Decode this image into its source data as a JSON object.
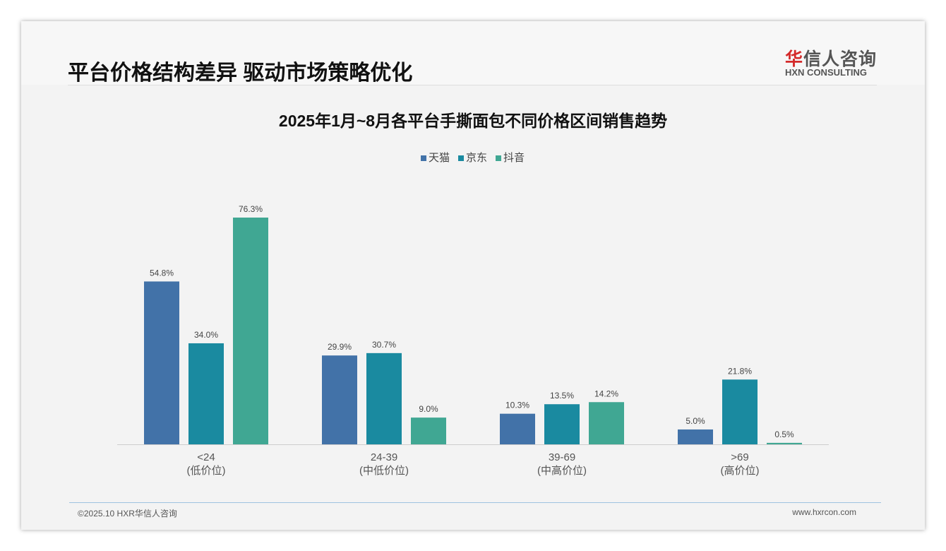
{
  "header": {
    "title": "平台价格结构差异 驱动市场策略优化",
    "logo_cn_red": "华",
    "logo_cn": "信人咨询",
    "logo_en": "HXN CONSULTING"
  },
  "footer": {
    "copyright": "©2025.10 HXR华信人咨询",
    "url": "www.hxrcon.com"
  },
  "colors": {
    "天猫": "#4272a8",
    "京东": "#1a8aa0",
    "抖音": "#40a793"
  },
  "chart_data": {
    "type": "bar",
    "title": "2025年1月~8月各平台手撕面包不同价格区间销售趋势",
    "categories": [
      "<24",
      "24-39",
      "39-69",
      ">69"
    ],
    "category_sublabels": [
      "(低价位)",
      "(中低价位)",
      "(中高价位)",
      "(高价位)"
    ],
    "series": [
      {
        "name": "天猫",
        "values": [
          54.8,
          29.9,
          10.3,
          5.0
        ]
      },
      {
        "name": "京东",
        "values": [
          34.0,
          30.7,
          13.5,
          21.8
        ]
      },
      {
        "name": "抖音",
        "values": [
          76.3,
          9.0,
          14.2,
          0.5
        ]
      }
    ],
    "unit": "%",
    "legend": "top-center",
    "grid": false
  }
}
